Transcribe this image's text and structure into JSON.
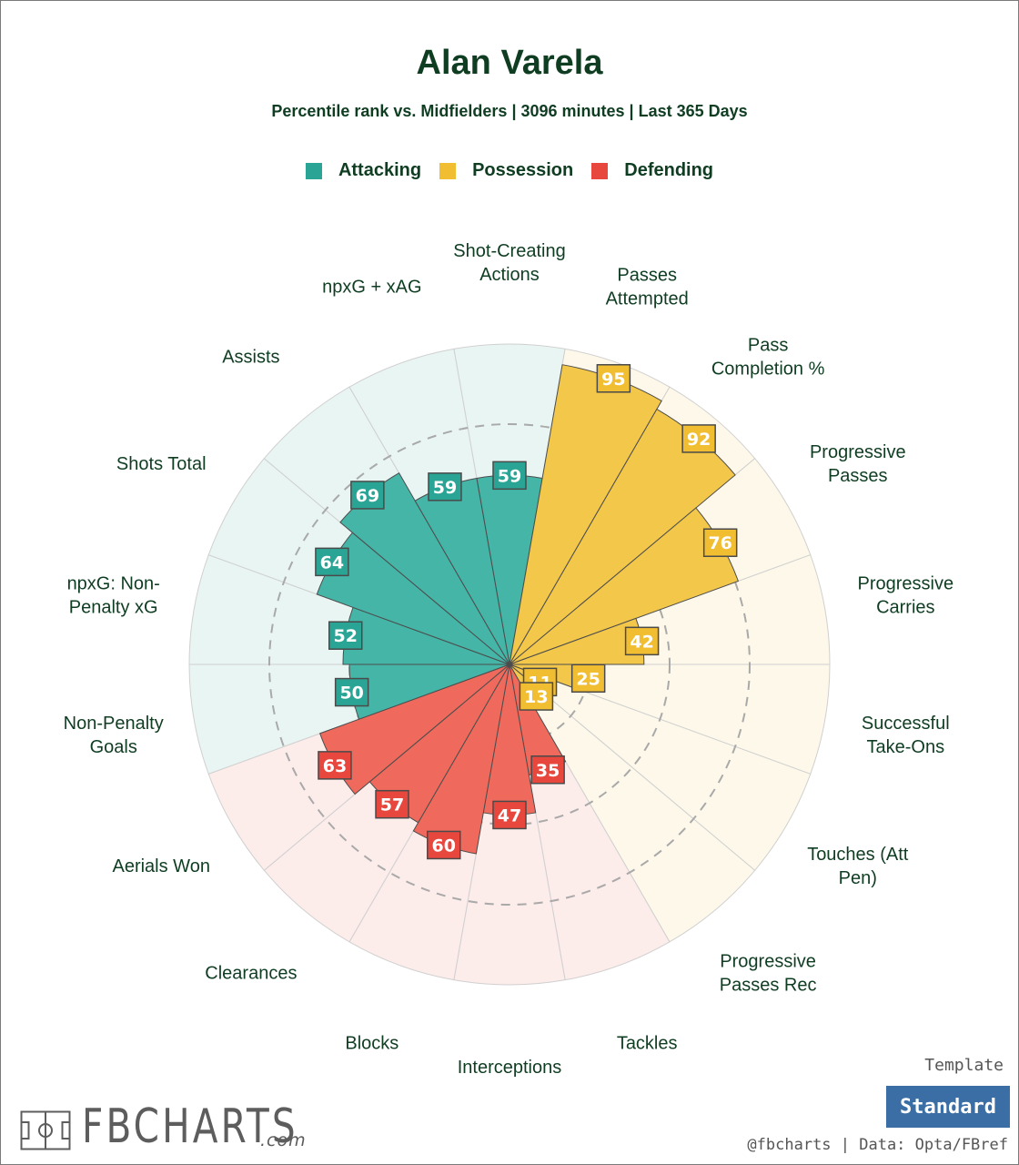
{
  "title": "Alan Varela",
  "subtitle": "Percentile rank vs. Midfielders | 3096 minutes | Last 365 Days",
  "legend": [
    {
      "label": "Attacking",
      "color": "#2aa595"
    },
    {
      "label": "Possession",
      "color": "#f1bd31"
    },
    {
      "label": "Defending",
      "color": "#e8473d"
    }
  ],
  "template": {
    "label": "Template",
    "value": "Standard"
  },
  "credit": "@fbcharts | Data: Opta/FBref",
  "logo": {
    "name": "FBCHARTS",
    "suffix": ".com"
  },
  "chart_data": {
    "type": "radar",
    "title": "Alan Varela",
    "scale": [
      0,
      100
    ],
    "grid_rings": [
      25,
      50,
      75
    ],
    "colors": {
      "Attacking": {
        "fill": "#44b5a7",
        "bg": "#e8f5f3",
        "label": "#2aa595"
      },
      "Possession": {
        "fill": "#f3c74a",
        "bg": "#fdf8e9",
        "label": "#f1bd31"
      },
      "Defending": {
        "fill": "#ef6a5c",
        "bg": "#fcecea",
        "label": "#e8473d"
      }
    },
    "metrics": [
      {
        "label": [
          "Shot-Creating",
          "Actions"
        ],
        "value": 59,
        "group": "Attacking"
      },
      {
        "label": [
          "Passes",
          "Attempted"
        ],
        "value": 95,
        "group": "Possession"
      },
      {
        "label": [
          "Pass",
          "Completion %"
        ],
        "value": 92,
        "group": "Possession"
      },
      {
        "label": [
          "Progressive",
          "Passes"
        ],
        "value": 76,
        "group": "Possession"
      },
      {
        "label": [
          "Progressive",
          "Carries"
        ],
        "value": 42,
        "group": "Possession"
      },
      {
        "label": [
          "Successful",
          "Take-Ons"
        ],
        "value": 25,
        "group": "Possession"
      },
      {
        "label": [
          "Touches (Att",
          "Pen)"
        ],
        "value": 11,
        "group": "Possession"
      },
      {
        "label": [
          "Progressive",
          "Passes Rec"
        ],
        "value": 13,
        "group": "Possession"
      },
      {
        "label": [
          "Tackles"
        ],
        "value": 35,
        "group": "Defending"
      },
      {
        "label": [
          "Interceptions"
        ],
        "value": 47,
        "group": "Defending"
      },
      {
        "label": [
          "Blocks"
        ],
        "value": 60,
        "group": "Defending"
      },
      {
        "label": [
          "Clearances"
        ],
        "value": 57,
        "group": "Defending"
      },
      {
        "label": [
          "Aerials Won"
        ],
        "value": 63,
        "group": "Defending"
      },
      {
        "label": [
          "Non-Penalty",
          "Goals"
        ],
        "value": 50,
        "group": "Attacking"
      },
      {
        "label": [
          "npxG: Non-",
          "Penalty xG"
        ],
        "value": 52,
        "group": "Attacking"
      },
      {
        "label": [
          "Shots Total"
        ],
        "value": 64,
        "group": "Attacking"
      },
      {
        "label": [
          "Assists"
        ],
        "value": 69,
        "group": "Attacking"
      },
      {
        "label": [
          "npxG + xAG"
        ],
        "value": 59,
        "group": "Attacking"
      }
    ]
  }
}
